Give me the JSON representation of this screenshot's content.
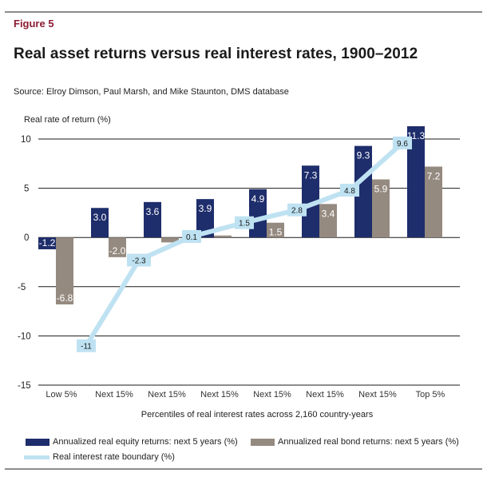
{
  "header": {
    "figure_label": "Figure 5",
    "title": "Real asset returns versus real interest rates, 1900–2012",
    "source": "Source: Elroy Dimson, Paul Marsh, and Mike Staunton, DMS database"
  },
  "colors": {
    "equity": "#1e2d6b",
    "bond": "#958a80",
    "line": "#bfe2f2",
    "figure_label": "#8b1c33"
  },
  "chart_data": {
    "type": "bar",
    "title": "Real asset returns versus real interest rates, 1900–2012",
    "ylabel": "Real rate of return (%)",
    "xlabel": "Percentiles of real interest rates across 2,160 country-years",
    "ylim": [
      -15,
      10
    ],
    "yticks": [
      10,
      5,
      0,
      -5,
      -10,
      -15
    ],
    "grid": true,
    "legend_position": "bottom",
    "categories": [
      "Low 5%",
      "Next 15%",
      "Next 15%",
      "Next 15%",
      "Next 15%",
      "Next 15%",
      "Next 15%",
      "Top 5%"
    ],
    "series": [
      {
        "name": "Annualized real equity returns: next 5 years (%)",
        "kind": "bar",
        "values": [
          -1.2,
          3.0,
          3.6,
          3.9,
          4.9,
          7.3,
          9.3,
          11.3
        ],
        "labels": [
          "-1.2",
          "3.0",
          "3.6",
          "3.9",
          "4.9",
          "7.3",
          "9.3",
          "11.3"
        ]
      },
      {
        "name": "Annualized real bond returns: next 5 years (%)",
        "kind": "bar",
        "values": [
          -6.8,
          -2.0,
          -0.5,
          0.2,
          1.5,
          3.4,
          5.9,
          7.2
        ],
        "labels": [
          "-6.8",
          "-2.0",
          "",
          "",
          "1.5",
          "3.4",
          "5.9",
          "7.2"
        ]
      },
      {
        "name": "Real interest rate boundary (%)",
        "kind": "line",
        "boundary_after_category": [
          1,
          2,
          3,
          4,
          5,
          6,
          7
        ],
        "values": [
          -11,
          -2.3,
          0.1,
          1.5,
          2.8,
          4.8,
          9.6
        ],
        "labels": [
          "-11",
          "-2.3",
          "0.1",
          "1.5",
          "2.8",
          "4.8",
          "9.6"
        ]
      }
    ]
  },
  "legend": {
    "equity": "Annualized real equity returns: next 5 years (%)",
    "bond": "Annualized real bond returns: next 5 years (%)",
    "line": "Real interest rate boundary (%)"
  }
}
